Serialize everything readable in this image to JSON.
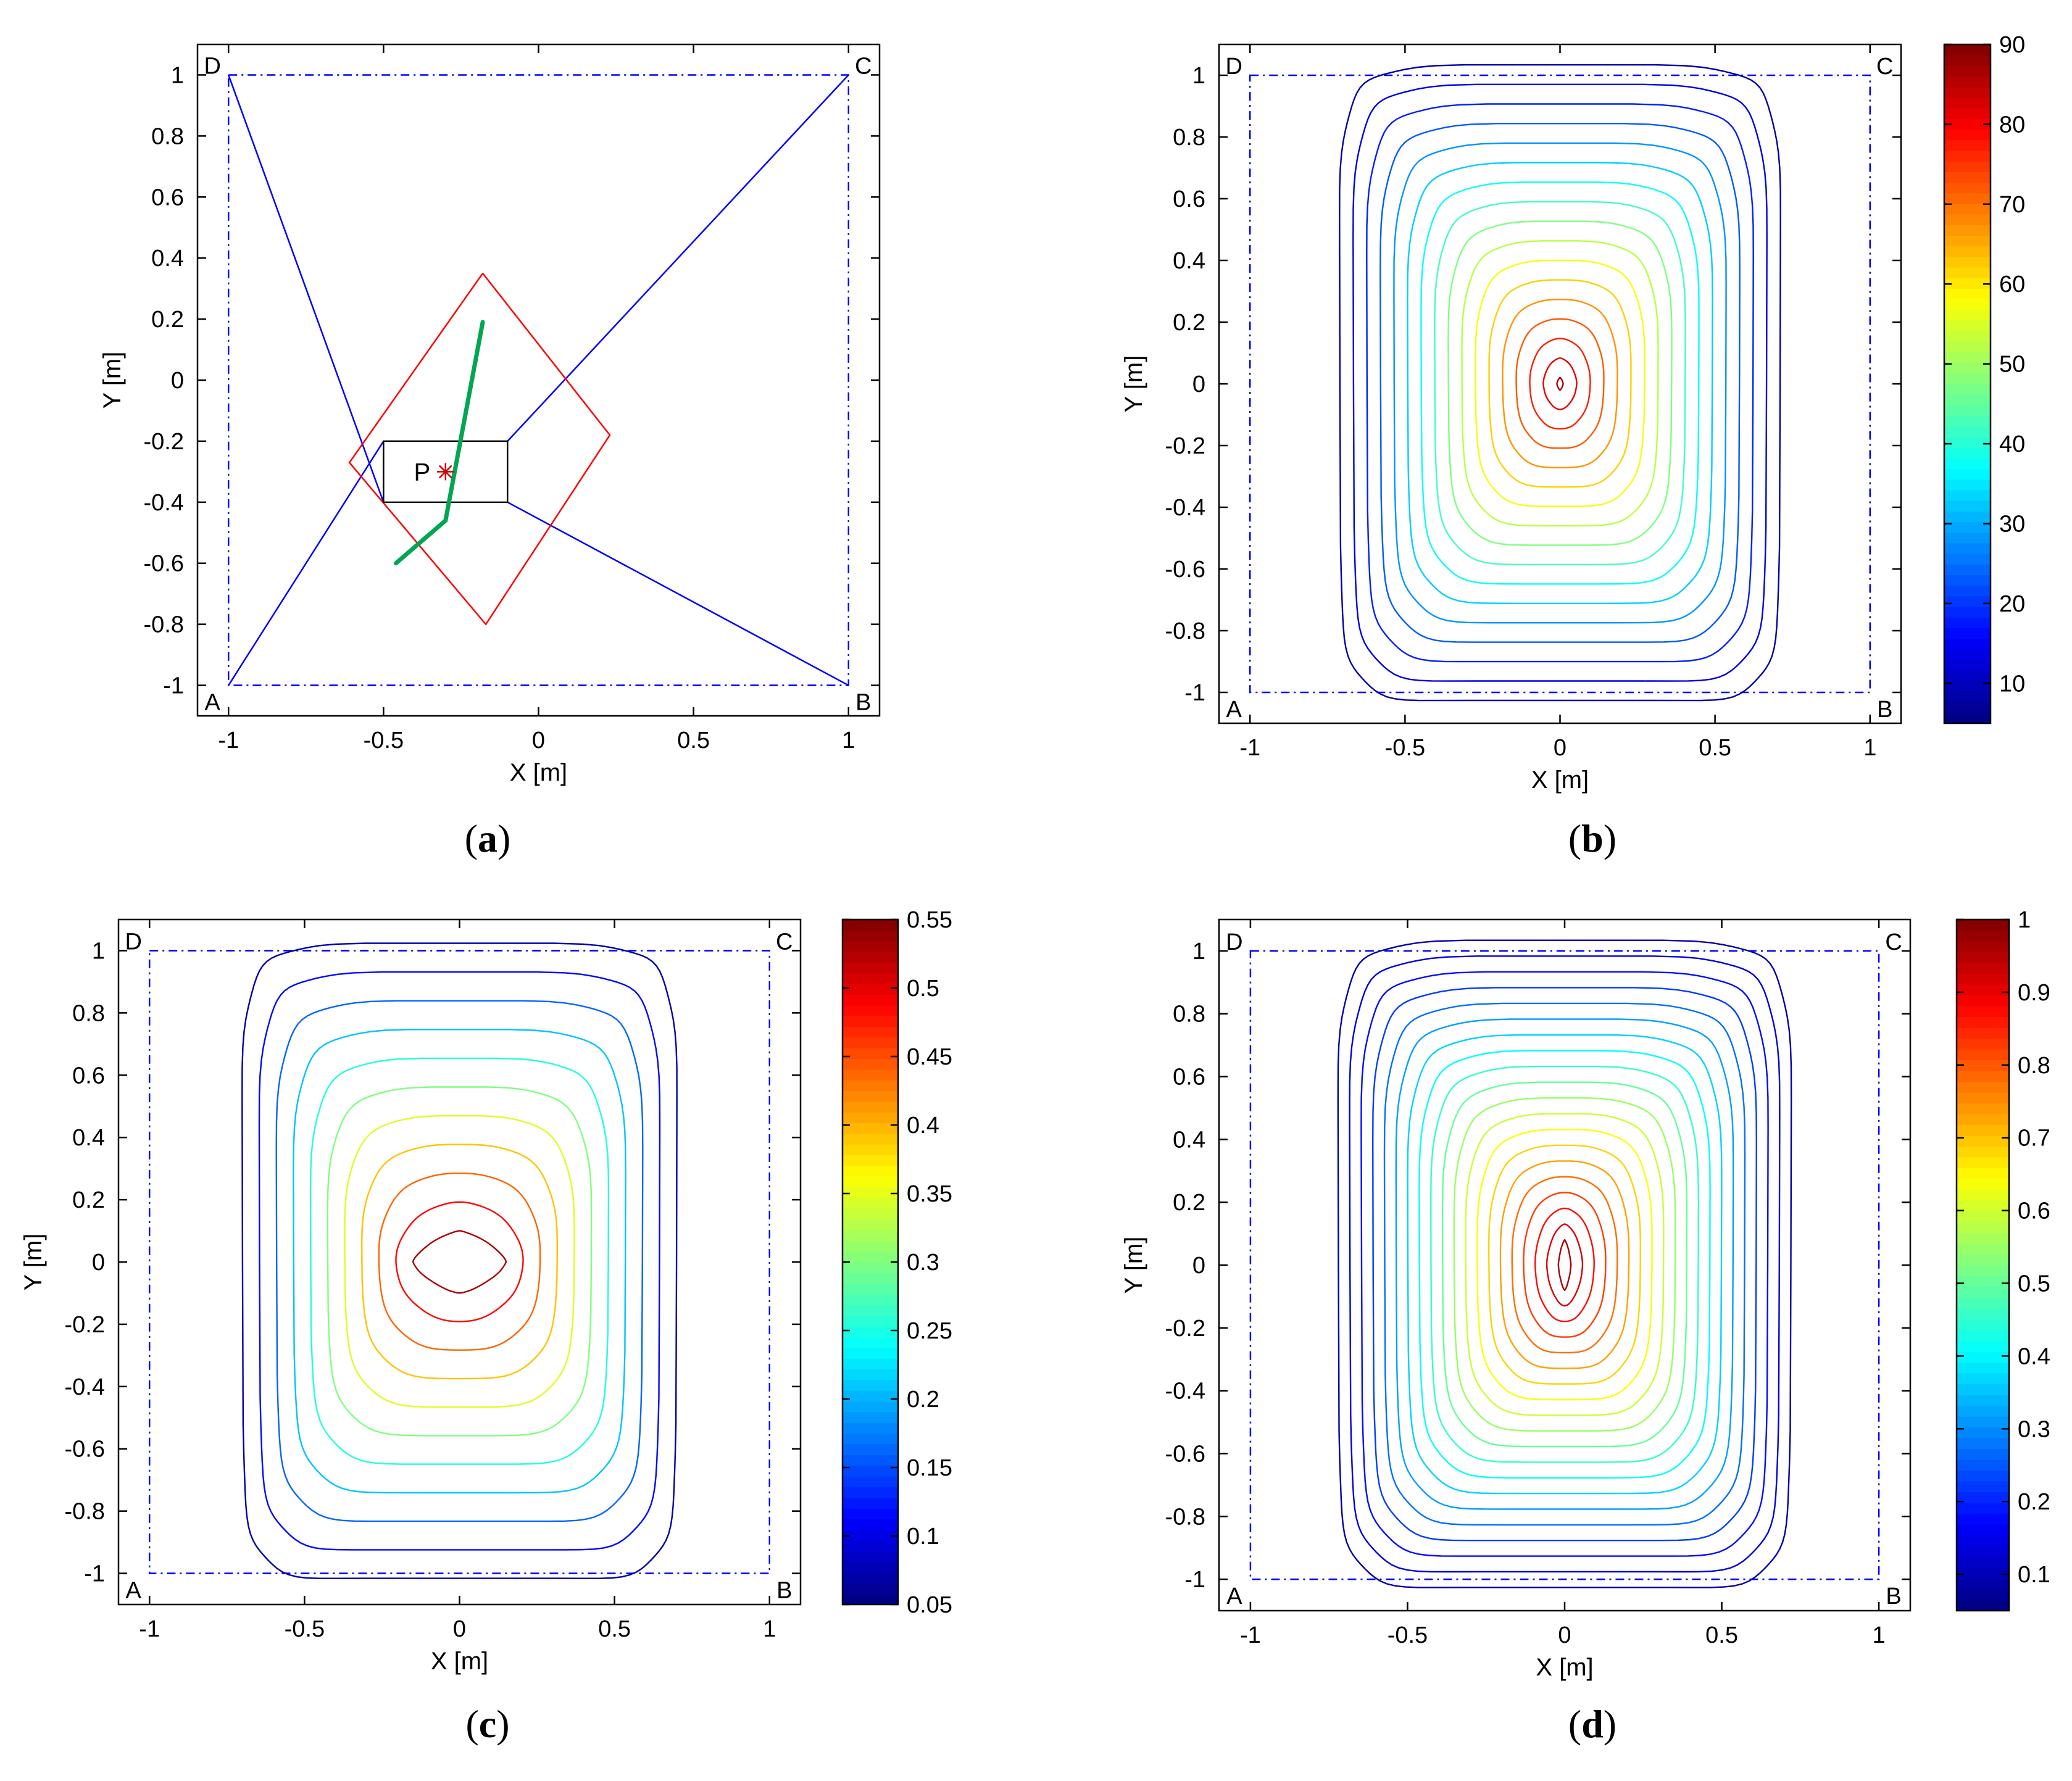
{
  "chart_data": [
    {
      "panel": "a",
      "type": "line",
      "caption_letter": "a",
      "xlabel": "X [m]",
      "ylabel": "Y [m]",
      "xlim": [
        -1.1,
        1.1
      ],
      "ylim": [
        -1.1,
        1.1
      ],
      "xticks": [
        -1,
        -0.5,
        0,
        0.5,
        1
      ],
      "yticks": [
        -1,
        -0.8,
        -0.6,
        -0.4,
        -0.2,
        0,
        0.2,
        0.4,
        0.6,
        0.8,
        1
      ],
      "corners": [
        {
          "name": "A",
          "x": -1,
          "y": -1
        },
        {
          "name": "B",
          "x": 1,
          "y": -1
        },
        {
          "name": "C",
          "x": 1,
          "y": 1
        },
        {
          "name": "D",
          "x": -1,
          "y": 1
        }
      ],
      "workspace_square": [
        [
          -1,
          -1
        ],
        [
          1,
          -1
        ],
        [
          1,
          1
        ],
        [
          -1,
          1
        ]
      ],
      "platform_label": "P",
      "point_P": {
        "x": -0.3,
        "y": -0.3
      },
      "platform_box": [
        [
          -0.5,
          -0.2
        ],
        [
          -0.1,
          -0.2
        ],
        [
          -0.1,
          -0.4
        ],
        [
          -0.5,
          -0.4
        ]
      ],
      "cables": [
        [
          [
            -1,
            1
          ],
          [
            -0.5,
            -0.4
          ]
        ],
        [
          [
            1,
            1
          ],
          [
            -0.1,
            -0.2
          ]
        ],
        [
          [
            1,
            -1
          ],
          [
            -0.1,
            -0.4
          ]
        ],
        [
          [
            -1,
            -1
          ],
          [
            -0.5,
            -0.2
          ]
        ]
      ],
      "red_region": [
        [
          -0.18,
          0.35
        ],
        [
          0.23,
          -0.18
        ],
        [
          -0.17,
          -0.8
        ],
        [
          -0.61,
          -0.27
        ],
        [
          -0.18,
          0.35
        ]
      ],
      "green_path": [
        [
          -0.46,
          -0.6
        ],
        [
          -0.3,
          -0.46
        ],
        [
          -0.18,
          0.19
        ]
      ],
      "colors": {
        "square": "#0000ff",
        "cable": "#0000ff",
        "region": "#ff0000",
        "path": "#00a651",
        "point": "#cc0000",
        "box": "#000000"
      }
    },
    {
      "panel": "b",
      "type": "contour",
      "caption_letter": "b",
      "xlabel": "X [m]",
      "ylabel": "Y [m]",
      "xlim": [
        -1.1,
        1.1
      ],
      "ylim": [
        -1.1,
        1.1
      ],
      "xticks": [
        -1,
        -0.5,
        0,
        0.5,
        1
      ],
      "yticks": [
        -1,
        -0.8,
        -0.6,
        -0.4,
        -0.2,
        0,
        0.2,
        0.4,
        0.6,
        0.8,
        1
      ],
      "corners": [
        {
          "name": "A",
          "x": -1,
          "y": -1
        },
        {
          "name": "B",
          "x": 1,
          "y": -1
        },
        {
          "name": "C",
          "x": 1,
          "y": 1
        },
        {
          "name": "D",
          "x": -1,
          "y": 1
        }
      ],
      "contour_count": 17,
      "outer_half_width": 0.71,
      "outer_half_height": 1.03,
      "inner_half_width": 0.01,
      "inner_half_height": 0.02,
      "colorbar": {
        "min": 5,
        "max": 90,
        "ticks": [
          10,
          20,
          30,
          40,
          50,
          60,
          70,
          80,
          90
        ]
      }
    },
    {
      "panel": "c",
      "type": "contour",
      "caption_letter": "c",
      "xlabel": "X [m]",
      "ylabel": "Y [m]",
      "xlim": [
        -1.1,
        1.1
      ],
      "ylim": [
        -1.1,
        1.1
      ],
      "xticks": [
        -1,
        -0.5,
        0,
        0.5,
        1
      ],
      "yticks": [
        -1,
        -0.8,
        -0.6,
        -0.4,
        -0.2,
        0,
        0.2,
        0.4,
        0.6,
        0.8,
        1
      ],
      "corners": [
        {
          "name": "A",
          "x": -1,
          "y": -1
        },
        {
          "name": "B",
          "x": 1,
          "y": -1
        },
        {
          "name": "C",
          "x": 1,
          "y": 1
        },
        {
          "name": "D",
          "x": -1,
          "y": 1
        }
      ],
      "contour_count": 11,
      "outer_half_width": 0.7,
      "outer_half_height": 1.02,
      "inner_half_width": 0.15,
      "inner_half_height": 0.1,
      "colorbar": {
        "min": 0.05,
        "max": 0.55,
        "ticks": [
          0.05,
          0.1,
          0.15,
          0.2,
          0.25,
          0.3,
          0.35,
          0.4,
          0.45,
          0.5,
          0.55
        ]
      }
    },
    {
      "panel": "d",
      "type": "contour",
      "caption_letter": "d",
      "xlabel": "X [m]",
      "ylabel": "Y [m]",
      "xlim": [
        -1.1,
        1.1
      ],
      "ylim": [
        -1.1,
        1.1
      ],
      "xticks": [
        -1,
        -0.5,
        0,
        0.5,
        1
      ],
      "yticks": [
        -1,
        -0.8,
        -0.6,
        -0.4,
        -0.2,
        0,
        0.2,
        0.4,
        0.6,
        0.8,
        1
      ],
      "corners": [
        {
          "name": "A",
          "x": -1,
          "y": -1
        },
        {
          "name": "B",
          "x": 1,
          "y": -1
        },
        {
          "name": "C",
          "x": 1,
          "y": 1
        },
        {
          "name": "D",
          "x": -1,
          "y": 1
        }
      ],
      "contour_count": 20,
      "outer_half_width": 0.72,
      "outer_half_height": 1.03,
      "inner_half_width": 0.02,
      "inner_half_height": 0.08,
      "colorbar": {
        "min": 0.05,
        "max": 1,
        "ticks": [
          0.1,
          0.2,
          0.3,
          0.4,
          0.5,
          0.6,
          0.7,
          0.8,
          0.9,
          1
        ]
      }
    }
  ]
}
